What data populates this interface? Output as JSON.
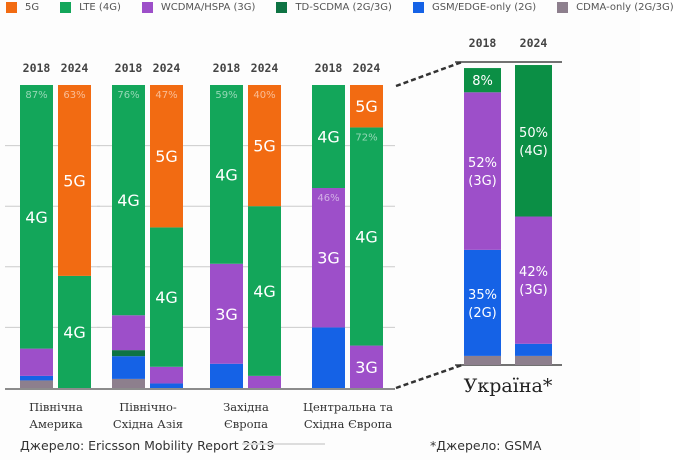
{
  "chart_data": [
    {
      "type": "bar",
      "stacked": true,
      "ylim": [
        0,
        100
      ],
      "grid": true,
      "legend": {
        "placement": "top",
        "entries": [
          {
            "name": "5G",
            "color": "#f26b12"
          },
          {
            "name": "LTE (4G)",
            "color": "#13a65a"
          },
          {
            "name": "WCDMA/HSPA (3G)",
            "color": "#9d4fc9"
          },
          {
            "name": "TD-SCDMA (2G/3G)",
            "color": "#0e7343"
          },
          {
            "name": "GSM/EDGE-only (2G)",
            "color": "#1562e6"
          },
          {
            "name": "CDMA-only (2G/3G)",
            "color": "#8d7f8d"
          }
        ]
      },
      "groups": [
        {
          "category": [
            "Північна",
            "Америка"
          ],
          "bars": [
            {
              "year": "2018",
              "segments": {
                "CDMA-only (2G/3G)": 2.5,
                "GSM/EDGE-only (2G)": 1.5,
                "WCDMA/HSPA (3G)": 9,
                "LTE (4G)": 87
              },
              "labels": {
                "LTE (4G)": "4G"
              },
              "pct": {
                "LTE (4G)": "87%"
              }
            },
            {
              "year": "2024",
              "segments": {
                "LTE (4G)": 37,
                "5G": 63
              },
              "labels": {
                "LTE (4G)": "4G",
                "5G": "5G"
              },
              "pct": {
                "5G": "63%"
              }
            }
          ]
        },
        {
          "category": [
            "Північно-",
            "Східна Азія"
          ],
          "bars": [
            {
              "year": "2018",
              "segments": {
                "CDMA-only (2G/3G)": 3,
                "GSM/EDGE-only (2G)": 7.5,
                "TD-SCDMA (2G/3G)": 2,
                "WCDMA/HSPA (3G)": 11.5,
                "LTE (4G)": 76
              },
              "labels": {
                "LTE (4G)": "4G"
              },
              "pct": {
                "LTE (4G)": "76%"
              }
            },
            {
              "year": "2024",
              "segments": {
                "GSM/EDGE-only (2G)": 1.5,
                "WCDMA/HSPA (3G)": 5.5,
                "LTE (4G)": 46,
                "5G": 47
              },
              "labels": {
                "LTE (4G)": "4G",
                "5G": "5G"
              },
              "pct": {
                "5G": "47%"
              }
            }
          ]
        },
        {
          "category": [
            "Західна",
            "Європа"
          ],
          "bars": [
            {
              "year": "2018",
              "segments": {
                "GSM/EDGE-only (2G)": 8,
                "WCDMA/HSPA (3G)": 33,
                "LTE (4G)": 59
              },
              "labels": {
                "WCDMA/HSPA (3G)": "3G",
                "LTE (4G)": "4G"
              },
              "pct": {
                "LTE (4G)": "59%"
              }
            },
            {
              "year": "2024",
              "segments": {
                "WCDMA/HSPA (3G)": 4,
                "LTE (4G)": 56,
                "5G": 40
              },
              "labels": {
                "LTE (4G)": "4G",
                "5G": "5G"
              },
              "pct": {
                "5G": "40%"
              }
            }
          ]
        },
        {
          "category": [
            "Центральна та",
            "Східна Європа"
          ],
          "bars": [
            {
              "year": "2018",
              "segments": {
                "GSM/EDGE-only (2G)": 20,
                "WCDMA/HSPA (3G)": 46,
                "LTE (4G)": 34
              },
              "labels": {
                "WCDMA/HSPA (3G)": "3G",
                "LTE (4G)": "4G"
              },
              "pct": {
                "WCDMA/HSPA (3G)": "46%"
              }
            },
            {
              "year": "2024",
              "segments": {
                "WCDMA/HSPA (3G)": 14,
                "LTE (4G)": 72,
                "5G": 14
              },
              "labels": {
                "WCDMA/HSPA (3G)": "3G",
                "LTE (4G)": "4G",
                "5G": "5G"
              },
              "pct": {
                "LTE (4G)": "72%"
              }
            }
          ]
        }
      ],
      "source": "Джерело: Ericsson Mobility Report 2019"
    },
    {
      "type": "bar",
      "stacked": true,
      "ylim": [
        0,
        100
      ],
      "title": "Україна*",
      "bars": [
        {
          "year": "2018",
          "segments": {
            "CDMA-only (2G/3G)": 3,
            "GSM/EDGE-only (2G)": 35,
            "WCDMA/HSPA (3G)": 52,
            "4G": 8
          },
          "labels": {
            "GSM/EDGE-only (2G)": [
              "35%",
              "(2G)"
            ],
            "WCDMA/HSPA (3G)": [
              "52%",
              "(3G)"
            ],
            "4G": [
              "8%"
            ]
          }
        },
        {
          "year": "2024",
          "segments": {
            "CDMA-only (2G/3G)": 3,
            "GSM/EDGE-only (2G)": 4,
            "WCDMA/HSPA (3G)": 42,
            "4G": 50
          },
          "labels": {
            "WCDMA/HSPA (3G)": [
              "42%",
              "(3G)"
            ],
            "4G": [
              "50%",
              "(4G)"
            ]
          }
        }
      ],
      "colors": {
        "4G": "#0b8f45"
      },
      "source": "*Джерело: GSMA"
    }
  ]
}
